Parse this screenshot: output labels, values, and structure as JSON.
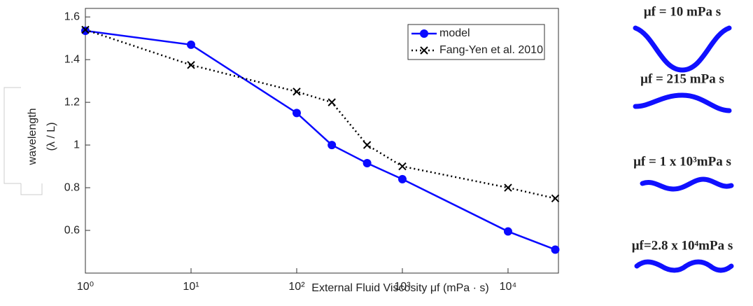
{
  "chart_data": {
    "type": "line",
    "xlabel": "External Fluid Viscosity μf (mPa · s)",
    "ylabel": [
      "wavelength",
      "(λ / L)"
    ],
    "xscale": "log",
    "xlim": [
      1,
      30000
    ],
    "ylim": [
      0.4,
      1.64
    ],
    "xticks": [
      {
        "value": 1,
        "label": "10⁰"
      },
      {
        "value": 10,
        "label": "10¹"
      },
      {
        "value": 100,
        "label": "10²"
      },
      {
        "value": 1000,
        "label": "10³"
      },
      {
        "value": 10000,
        "label": "10⁴"
      }
    ],
    "yticks": [
      0.6,
      0.8,
      1,
      1.2,
      1.4,
      1.6
    ],
    "grid": false,
    "legend": "northeast",
    "series": [
      {
        "name": "model",
        "color": "#0a0aff",
        "marker": "o",
        "linestyle": "solid",
        "x": [
          1,
          10,
          100,
          215,
          464,
          1000,
          10000,
          28000
        ],
        "values": [
          1.535,
          1.47,
          1.15,
          1.0,
          0.915,
          0.84,
          0.595,
          0.51
        ]
      },
      {
        "name": "Fang-Yen et al. 2010",
        "color": "#000000",
        "marker": "x",
        "linestyle": "dotted",
        "x": [
          1,
          10,
          100,
          215,
          464,
          1000,
          10000,
          28000
        ],
        "values": [
          1.54,
          1.375,
          1.25,
          1.2,
          1.0,
          0.9,
          0.8,
          0.75
        ]
      }
    ],
    "annotations": [
      "μf = 10 mPa s",
      "μf = 215 mPa s",
      "μf = 1 x 10³mPa s",
      "μf=2.8 x 10⁴mPa s"
    ]
  }
}
